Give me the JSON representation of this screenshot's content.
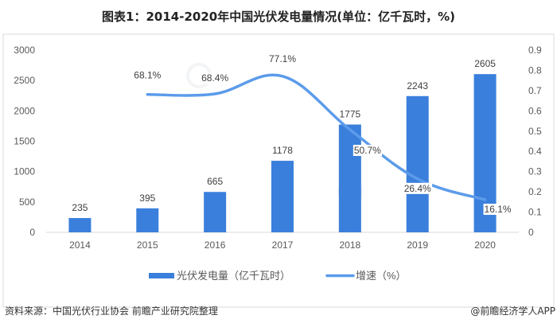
{
  "title": "图表1：2014-2020年中国光伏发电量情况(单位：亿千瓦时，%)",
  "source": "资料来源：中国光伏行业协会 前瞻产业研究院整理",
  "brand": "@前瞻经济学人APP",
  "watermark": "前瞻产业研究院",
  "chart_data": {
    "type": "bar+line",
    "categories": [
      "2014",
      "2015",
      "2016",
      "2017",
      "2018",
      "2019",
      "2020"
    ],
    "series": [
      {
        "name": "光伏发电量（亿千瓦时）",
        "type": "bar",
        "axis": "left",
        "color": "#3a7fdc",
        "values": [
          235,
          395,
          665,
          1178,
          1775,
          2243,
          2605
        ],
        "labels": [
          "235",
          "395",
          "665",
          "1178",
          "1775",
          "2243",
          "2605"
        ]
      },
      {
        "name": "增速（%）",
        "type": "line",
        "axis": "right",
        "color": "#5b9bea",
        "values": [
          null,
          0.681,
          0.684,
          0.771,
          0.507,
          0.264,
          0.161
        ],
        "labels": [
          null,
          "68.1%",
          "68.4%",
          "77.1%",
          "50.7%",
          "26.4%",
          "16.1%"
        ]
      }
    ],
    "left_axis": {
      "min": 0,
      "max": 3000,
      "ticks": [
        "0",
        "500",
        "1000",
        "1500",
        "2000",
        "2500",
        "3000"
      ]
    },
    "right_axis": {
      "min": 0,
      "max": 0.9,
      "ticks": [
        "0",
        "0.1",
        "0.2",
        "0.3",
        "0.4",
        "0.5",
        "0.6",
        "0.7",
        "0.8",
        "0.9"
      ]
    },
    "grid": false,
    "legend": "bottom"
  }
}
